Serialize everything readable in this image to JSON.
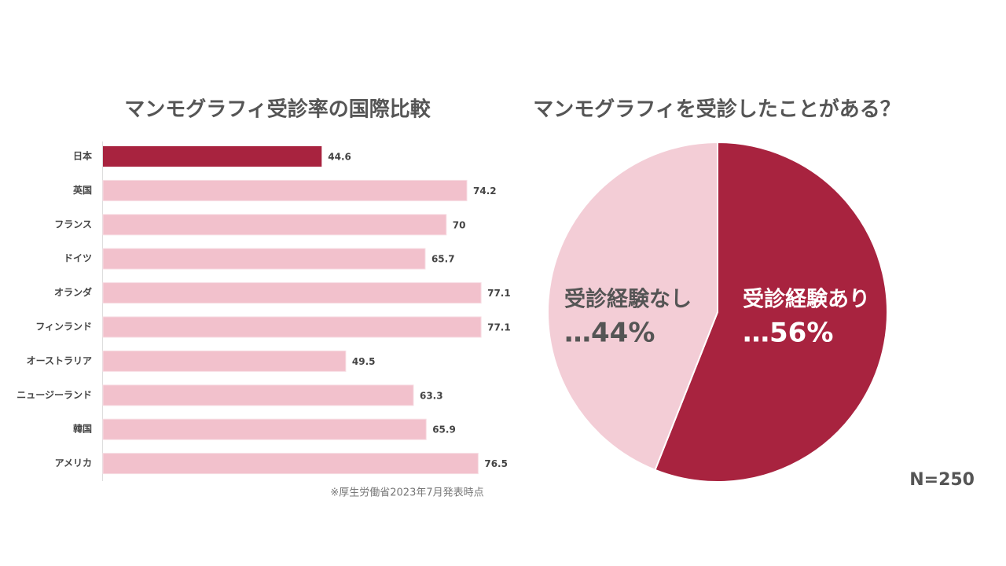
{
  "chart_data": [
    {
      "type": "barh",
      "title": "マンモグラフィ受診率の国際比較",
      "categories": [
        "日本",
        "英国",
        "フランス",
        "ドイツ",
        "オランダ",
        "フィンランド",
        "オーストラリア",
        "ニュージーランド",
        "韓国",
        "アメリカ"
      ],
      "values": [
        44.6,
        74.2,
        70,
        65.7,
        77.1,
        77.1,
        49.5,
        63.3,
        65.9,
        76.5
      ],
      "colors": [
        "#a8233f",
        "#f2c1cc",
        "#f2c1cc",
        "#f2c1cc",
        "#f2c1cc",
        "#f2c1cc",
        "#f2c1cc",
        "#f2c1cc",
        "#f2c1cc",
        "#f2c1cc"
      ],
      "note": "※厚生労働省2023年7月発表時点"
    },
    {
      "type": "pie",
      "title": "マンモグラフィを受診したことがある？",
      "categories": [
        "受診経験あり",
        "受診経験なし"
      ],
      "values": [
        56,
        44
      ],
      "value_labels": [
        "…56%",
        "…44%"
      ],
      "colors": [
        "#a8233f",
        "#f3cdd6"
      ],
      "label_colors": [
        "#ffffff",
        "#555555"
      ],
      "annotation": "N=250"
    }
  ]
}
